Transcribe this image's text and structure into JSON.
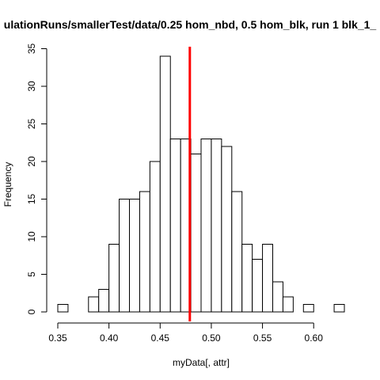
{
  "chart_data": {
    "type": "bar",
    "subtype": "histogram",
    "title": "ulationRuns/smallerTest/data/0.25 hom_nbd, 0.5 hom_blk, run 1 blk_1_",
    "xlabel": "myData[, attr]",
    "ylabel": "Frequency",
    "xlim": [
      0.35,
      0.63
    ],
    "ylim": [
      0,
      35
    ],
    "x_ticks": [
      0.35,
      0.4,
      0.45,
      0.5,
      0.55,
      0.6
    ],
    "x_tick_labels": [
      "0.35",
      "0.40",
      "0.45",
      "0.50",
      "0.55",
      "0.60"
    ],
    "y_ticks": [
      0,
      5,
      10,
      15,
      20,
      25,
      30,
      35
    ],
    "y_tick_labels": [
      "0",
      "5",
      "10",
      "15",
      "20",
      "25",
      "30",
      "35"
    ],
    "bin_width": 0.01,
    "bins": [
      {
        "start": 0.35,
        "end": 0.36,
        "count": 1
      },
      {
        "start": 0.36,
        "end": 0.37,
        "count": 0
      },
      {
        "start": 0.37,
        "end": 0.38,
        "count": 0
      },
      {
        "start": 0.38,
        "end": 0.39,
        "count": 2
      },
      {
        "start": 0.39,
        "end": 0.4,
        "count": 3
      },
      {
        "start": 0.4,
        "end": 0.41,
        "count": 9
      },
      {
        "start": 0.41,
        "end": 0.42,
        "count": 15
      },
      {
        "start": 0.42,
        "end": 0.43,
        "count": 15
      },
      {
        "start": 0.43,
        "end": 0.44,
        "count": 16
      },
      {
        "start": 0.44,
        "end": 0.45,
        "count": 20
      },
      {
        "start": 0.45,
        "end": 0.46,
        "count": 34
      },
      {
        "start": 0.46,
        "end": 0.47,
        "count": 23
      },
      {
        "start": 0.47,
        "end": 0.48,
        "count": 23
      },
      {
        "start": 0.48,
        "end": 0.49,
        "count": 21
      },
      {
        "start": 0.49,
        "end": 0.5,
        "count": 23
      },
      {
        "start": 0.5,
        "end": 0.51,
        "count": 23
      },
      {
        "start": 0.51,
        "end": 0.52,
        "count": 22
      },
      {
        "start": 0.52,
        "end": 0.53,
        "count": 16
      },
      {
        "start": 0.53,
        "end": 0.54,
        "count": 9
      },
      {
        "start": 0.54,
        "end": 0.55,
        "count": 7
      },
      {
        "start": 0.55,
        "end": 0.56,
        "count": 9
      },
      {
        "start": 0.56,
        "end": 0.57,
        "count": 4
      },
      {
        "start": 0.57,
        "end": 0.58,
        "count": 2
      },
      {
        "start": 0.58,
        "end": 0.59,
        "count": 0
      },
      {
        "start": 0.59,
        "end": 0.6,
        "count": 1
      },
      {
        "start": 0.6,
        "end": 0.61,
        "count": 0
      },
      {
        "start": 0.61,
        "end": 0.62,
        "count": 0
      },
      {
        "start": 0.62,
        "end": 0.63,
        "count": 1
      }
    ],
    "reference_line": {
      "x": 0.479,
      "color": "#ff0000"
    },
    "bar_fill": "#ffffff",
    "bar_stroke": "#000000",
    "grid": false,
    "legend": "none"
  }
}
